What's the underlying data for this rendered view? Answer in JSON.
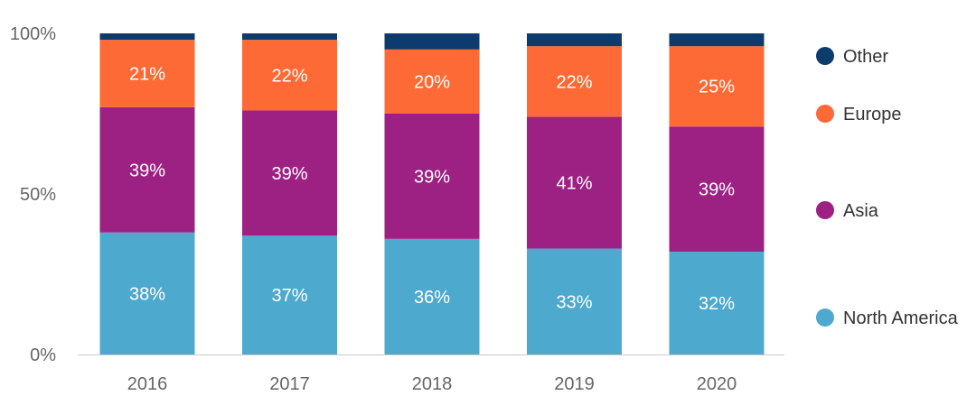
{
  "chart_data": {
    "type": "bar",
    "stacked": true,
    "percent_stacked": true,
    "title": "",
    "xlabel": "",
    "ylabel": "",
    "categories": [
      "2016",
      "2017",
      "2018",
      "2019",
      "2020"
    ],
    "y_ticks": [
      "0%",
      "50%",
      "100%"
    ],
    "ylim": [
      0,
      100
    ],
    "grid": false,
    "legend_position": "right",
    "series": [
      {
        "name": "North America",
        "color": "#4ea9cf",
        "values": [
          38,
          37,
          36,
          33,
          32
        ],
        "labels": [
          "38%",
          "37%",
          "36%",
          "33%",
          "32%"
        ]
      },
      {
        "name": "Asia",
        "color": "#9c2183",
        "values": [
          39,
          39,
          39,
          41,
          39
        ],
        "labels": [
          "39%",
          "39%",
          "39%",
          "41%",
          "39%"
        ]
      },
      {
        "name": "Europe",
        "color": "#fe6a35",
        "values": [
          21,
          22,
          20,
          22,
          25
        ],
        "labels": [
          "21%",
          "22%",
          "20%",
          "22%",
          "25%"
        ]
      },
      {
        "name": "Other",
        "color": "#0d3b6e",
        "values": [
          2,
          2,
          5,
          4,
          4
        ],
        "labels": [
          "",
          "",
          "",
          "",
          ""
        ]
      }
    ],
    "legend_order": [
      "Other",
      "Europe",
      "Asia",
      "North America"
    ]
  }
}
